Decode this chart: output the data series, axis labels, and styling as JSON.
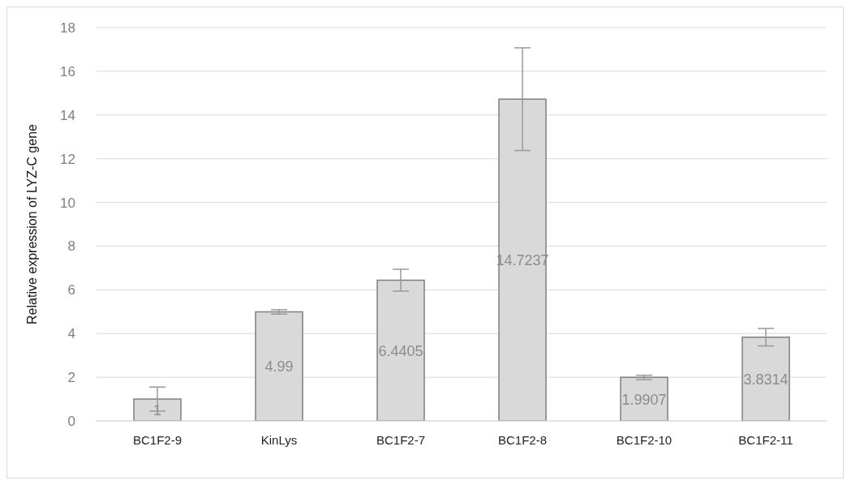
{
  "chart_data": {
    "type": "bar",
    "ylabel": "Relative expression of LYZ-C gene",
    "categories": [
      "BC1F2-9",
      "KinLys",
      "BC1F2-7",
      "BC1F2-8",
      "BC1F2-10",
      "BC1F2-11"
    ],
    "values": [
      1,
      4.99,
      6.4405,
      14.7237,
      1.9907,
      3.8314
    ],
    "errors": [
      0.55,
      0.1,
      0.5,
      2.35,
      0.1,
      0.4
    ],
    "color": "#d9d9d9",
    "ylim": [
      0,
      18
    ],
    "yticks": [
      0,
      2,
      4,
      6,
      8,
      10,
      12,
      14,
      16,
      18
    ],
    "grid": "y",
    "data_labels": true
  }
}
